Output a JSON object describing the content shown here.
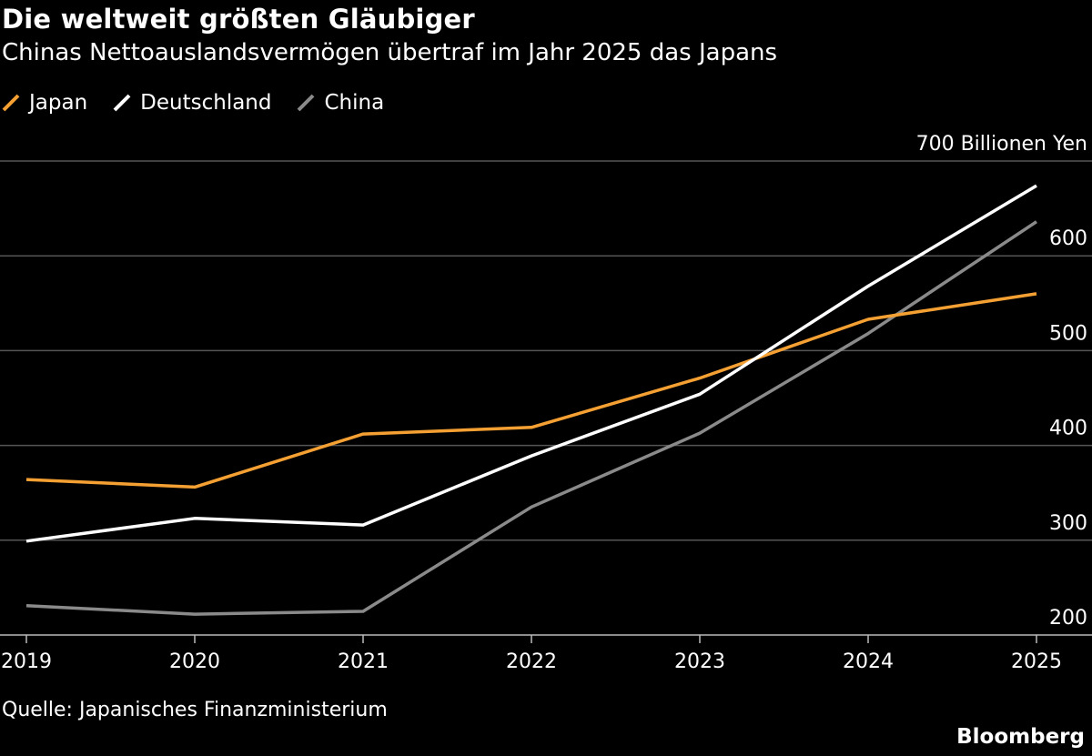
{
  "title": "Die weltweit größten Gläubiger",
  "subtitle": "Chinas Nettoauslandsvermögen übertraf im Jahr 2025 das Japans",
  "source": "Quelle: Japanisches Finanzministerium",
  "brand": "Bloomberg",
  "colors": {
    "background": "#000000",
    "grid": "#555555",
    "japan": "#f5a033",
    "deutschland": "#ffffff",
    "china": "#8a8a8a"
  },
  "chart_data": {
    "type": "line",
    "unit_label": "700 Billionen Yen",
    "x": [
      "2019",
      "2020",
      "2021",
      "2022",
      "2023",
      "2024",
      "2025"
    ],
    "ylim": [
      200,
      700
    ],
    "yticks": [
      200,
      300,
      400,
      500,
      600,
      700
    ],
    "ytick_labels": [
      "200",
      "300",
      "400",
      "500",
      "600",
      "700 Billionen Yen"
    ],
    "grid": true,
    "legend_position": "top-left",
    "series": [
      {
        "name": "Japan",
        "color": "#f5a033",
        "values": [
          364,
          356,
          412,
          419,
          471,
          533,
          560
        ]
      },
      {
        "name": "Deutschland",
        "color": "#ffffff",
        "values": [
          299,
          323,
          316,
          389,
          454,
          568,
          674
        ]
      },
      {
        "name": "China",
        "color": "#8a8a8a",
        "values": [
          231,
          222,
          225,
          335,
          413,
          518,
          636
        ]
      }
    ]
  }
}
